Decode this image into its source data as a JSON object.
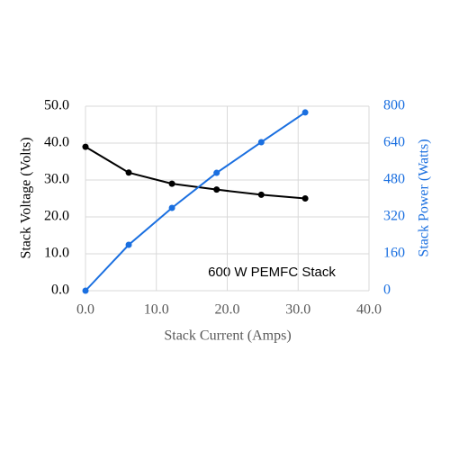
{
  "chart_data": {
    "type": "line",
    "annotation": "600 W PEMFC Stack",
    "x_label": "Stack Current (Amps)",
    "y_label": "Stack Voltage (Volts)",
    "y2_label": "Stack Power (Watts)",
    "x": [
      0,
      6.1,
      12.2,
      18.5,
      24.8,
      31.0
    ],
    "series": [
      {
        "name": "Stack Voltage",
        "color": "#000000",
        "axis": "y",
        "values": [
          39.0,
          32.0,
          29.0,
          27.4,
          26.0,
          25.0
        ]
      },
      {
        "name": "Stack Power",
        "color": "#1a6fe0",
        "axis": "y2",
        "values": [
          0,
          199,
          359,
          511,
          644,
          773
        ]
      }
    ],
    "xlim": [
      0,
      40
    ],
    "xticks": [
      {
        "value": 0,
        "label": "0.0"
      },
      {
        "value": 10,
        "label": "10.0"
      },
      {
        "value": 20,
        "label": "20.0"
      },
      {
        "value": 30,
        "label": "30.0"
      },
      {
        "value": 40,
        "label": "40.0"
      }
    ],
    "ylim": [
      0,
      50
    ],
    "yticks": [
      {
        "value": 0,
        "label": "0.0"
      },
      {
        "value": 10,
        "label": "10.0"
      },
      {
        "value": 20,
        "label": "20.0"
      },
      {
        "value": 30,
        "label": "30.0"
      },
      {
        "value": 40,
        "label": "40.0"
      },
      {
        "value": 50,
        "label": "50.0"
      }
    ],
    "y2lim": [
      0,
      800
    ],
    "y2ticks": [
      0,
      160,
      320,
      480,
      640,
      800
    ],
    "y2_color": "#1a6fe0",
    "grid": true
  }
}
